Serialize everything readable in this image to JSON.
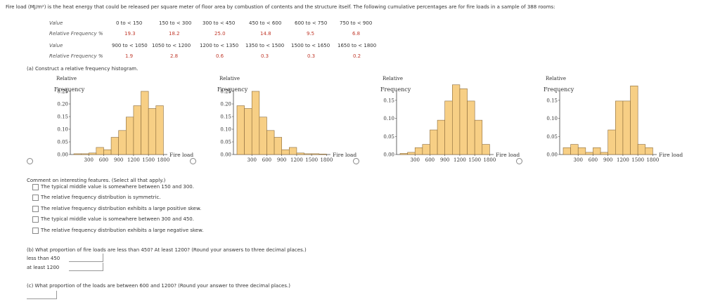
{
  "intro": "Fire load (MJ/m²) is the heat energy that could be released per square meter of floor area by combustion of contents and the structure itself. The following cumulative percentages are for fire loads in a sample of 388 rooms:",
  "table": {
    "value_label": "Value",
    "freq_label": "Relative Frequency %",
    "row1_values": [
      "0 to < 150",
      "150 to < 300",
      "300 to < 450",
      "450 to < 600",
      "600 to < 750",
      "750 to < 900"
    ],
    "row1_freqs": [
      "19.3",
      "18.2",
      "25.0",
      "14.8",
      "9.5",
      "6.8"
    ],
    "row2_values": [
      "900 to < 1050",
      "1050 to < 1200",
      "1200 to < 1350",
      "1350 to < 1500",
      "1500 to < 1650",
      "1650 to < 1800"
    ],
    "row2_freqs": [
      "1.9",
      "2.8",
      "0.6",
      "0.3",
      "0.3",
      "0.2"
    ]
  },
  "part_a": "(a) Construct a relative frequency histogram.",
  "axis": {
    "y1": "Relative",
    "y2": "Frequency",
    "x": "Fire load"
  },
  "chart_data": [
    {
      "type": "bar",
      "x_ticks": [
        "300",
        "600",
        "900",
        "1200",
        "1500",
        "1800"
      ],
      "y_ticks": [
        "0.00",
        "0.05",
        "0.10",
        "0.15",
        "0.20",
        "0.25"
      ],
      "ylim": [
        0,
        0.25
      ],
      "xlim": [
        0,
        1950
      ],
      "bin_width": 150,
      "x": [
        0,
        150,
        300,
        450,
        600,
        750,
        900,
        1050,
        1200,
        1350,
        1500,
        1650
      ],
      "values": [
        0.003,
        0.003,
        0.006,
        0.028,
        0.019,
        0.068,
        0.095,
        0.148,
        0.193,
        0.25,
        0.182,
        0.193
      ]
    },
    {
      "type": "bar",
      "x_ticks": [
        "300",
        "600",
        "900",
        "1200",
        "1500",
        "1800"
      ],
      "y_ticks": [
        "0.00",
        "0.05",
        "0.10",
        "0.15",
        "0.20",
        "0.25"
      ],
      "ylim": [
        0,
        0.25
      ],
      "xlim": [
        0,
        1950
      ],
      "bin_width": 150,
      "x": [
        0,
        150,
        300,
        450,
        600,
        750,
        900,
        1050,
        1200,
        1350,
        1500,
        1650
      ],
      "values": [
        0.193,
        0.182,
        0.25,
        0.148,
        0.095,
        0.068,
        0.019,
        0.028,
        0.006,
        0.003,
        0.003,
        0.002
      ]
    },
    {
      "type": "bar",
      "x_ticks": [
        "300",
        "600",
        "900",
        "1200",
        "1500",
        "1800"
      ],
      "y_ticks": [
        "0.00",
        "0.05",
        "0.10",
        "0.15"
      ],
      "ylim": [
        0,
        0.175
      ],
      "xlim": [
        0,
        1950
      ],
      "bin_width": 150,
      "x": [
        0,
        150,
        300,
        450,
        600,
        750,
        900,
        1050,
        1200,
        1350,
        1500,
        1650
      ],
      "values": [
        0.003,
        0.006,
        0.019,
        0.028,
        0.068,
        0.095,
        0.148,
        0.193,
        0.182,
        0.148,
        0.095,
        0.028
      ]
    },
    {
      "type": "bar",
      "x_ticks": [
        "300",
        "600",
        "900",
        "1200",
        "1500",
        "1800"
      ],
      "y_ticks": [
        "0.00",
        "0.05",
        "0.10",
        "0.15"
      ],
      "ylim": [
        0,
        0.175
      ],
      "xlim": [
        0,
        1950
      ],
      "bin_width": 150,
      "x": [
        0,
        150,
        300,
        450,
        600,
        750,
        900,
        1050,
        1200,
        1350,
        1500,
        1650
      ],
      "values": [
        0.019,
        0.028,
        0.019,
        0.006,
        0.019,
        0.006,
        0.068,
        0.148,
        0.148,
        0.19,
        0.028,
        0.019
      ]
    }
  ],
  "comment_title": "Comment on interesting features. (Select all that apply.)",
  "options": [
    "The typical middle value is somewhere between 150 and 300.",
    "The relative frequency distribution is symmetric.",
    "The relative frequency distribution exhibits a large positive skew.",
    "The typical middle value is somewhere between 300 and 450.",
    "The relative frequency distribution exhibits a large negative skew."
  ],
  "part_b": "(b) What proportion of fire loads are less than 450? At least 1200? (Round your answers to three decimal places.)",
  "less_label": "less than 450",
  "least_label": "at least 1200",
  "part_c": "(c) What proportion of the loads are between 600 and 1200? (Round your answer to three decimal places.)",
  "colors": {
    "bar_fill": "#f7cf85",
    "bar_stroke": "#8a6a3a",
    "red": "#c0392b"
  }
}
